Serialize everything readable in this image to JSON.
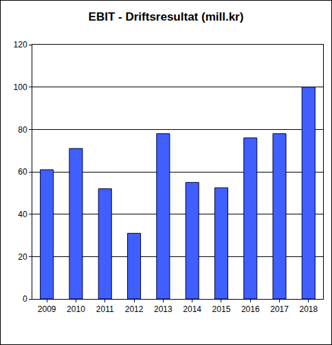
{
  "chart_data": {
    "type": "bar",
    "title": "EBIT - Driftsresultat (mill.kr)",
    "categories": [
      "2009",
      "2010",
      "2011",
      "2012",
      "2013",
      "2014",
      "2015",
      "2016",
      "2017",
      "2018"
    ],
    "values": [
      61,
      71,
      52,
      31,
      78,
      55,
      52.5,
      76,
      78,
      100
    ],
    "color": "#3f5fff",
    "ylim": [
      0,
      120
    ],
    "yticks": [
      0,
      20,
      40,
      60,
      80,
      100,
      120
    ],
    "grid": true
  }
}
